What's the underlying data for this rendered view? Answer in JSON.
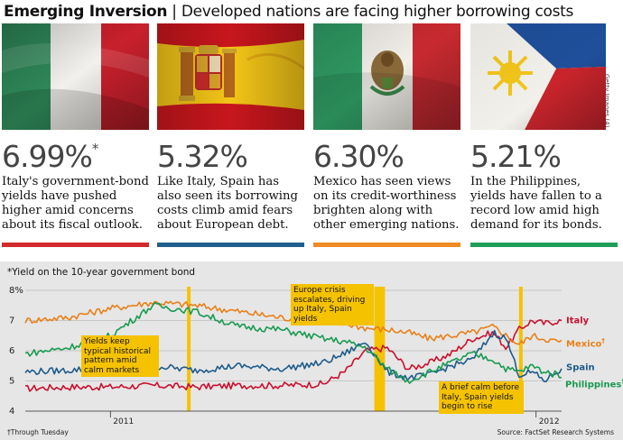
{
  "header": {
    "title_bold": "Emerging Inversion",
    "separator": "|",
    "subtitle": "Developed nations are facing higher borrowing costs"
  },
  "photo_credit": "Getty Images (4)",
  "columns": [
    {
      "country": "Italy",
      "value": "6.99%",
      "marker": "*",
      "description": "Italy's government-bond yields have pushed higher amid concerns about its fiscal outlook.",
      "bar_color": "#d12b2b"
    },
    {
      "country": "Spain",
      "value": "5.32%",
      "marker": "",
      "description": "Like Italy, Spain has also seen its borrowing costs climb amid fears about European debt.",
      "bar_color": "#1f5e8c"
    },
    {
      "country": "Mexico",
      "value": "6.30%",
      "marker": "",
      "description": "Mexico has seen views on its credit-worthiness brighten along with other emerging nations.",
      "bar_color": "#f08a24"
    },
    {
      "country": "Philippines",
      "value": "5.21%",
      "marker": "",
      "description": "In the Philippines, yields have fallen to a record low amid high demand for its bonds.",
      "bar_color": "#1f9e5a"
    }
  ],
  "chart_data": {
    "type": "line",
    "title": "*Yield on the 10-year government bond",
    "x_range": [
      2010.8,
      2012.06
    ],
    "x_ticks": [
      {
        "x": 2011,
        "label": "2011"
      },
      {
        "x": 2012,
        "label": "2012"
      }
    ],
    "ylim": [
      4,
      8
    ],
    "y_ticks": [
      {
        "v": 4,
        "label": "4"
      },
      {
        "v": 5,
        "label": "5"
      },
      {
        "v": 6,
        "label": "6"
      },
      {
        "v": 7,
        "label": "7"
      },
      {
        "v": 8,
        "label": "8%"
      }
    ],
    "highlight_bands": [
      {
        "x": 2011.18,
        "width": 0.006
      },
      {
        "x": 2011.62,
        "width": 0.025
      },
      {
        "x": 2011.96,
        "width": 0.008
      }
    ],
    "annotations": [
      {
        "name": "annotation-calm-markets",
        "text": "Yields keep typical historical pattern amid calm markets"
      },
      {
        "name": "annotation-europe-crisis",
        "text": "Europe crisis escalates, driving up Italy, Spain yields"
      },
      {
        "name": "annotation-brief-calm",
        "text": "A brief calm before Italy, Spain yields begin to rise"
      }
    ],
    "series": [
      {
        "name": "Italy",
        "label": "Italy",
        "marker": "",
        "color": "#c8102e",
        "x": [
          2010.8,
          2010.9,
          2011.0,
          2011.1,
          2011.2,
          2011.3,
          2011.4,
          2011.5,
          2011.55,
          2011.6,
          2011.65,
          2011.7,
          2011.75,
          2011.8,
          2011.85,
          2011.9,
          2011.93,
          2011.96,
          2011.99,
          2012.02,
          2012.05
        ],
        "values": [
          4.75,
          4.8,
          4.8,
          4.85,
          4.8,
          4.85,
          4.85,
          4.9,
          5.3,
          6.0,
          6.1,
          5.4,
          5.6,
          5.9,
          6.4,
          6.6,
          6.1,
          6.7,
          7.0,
          6.9,
          6.99
        ]
      },
      {
        "name": "Mexico",
        "label": "Mexico",
        "marker": "†",
        "color": "#e8801a",
        "x": [
          2010.8,
          2010.9,
          2011.0,
          2011.1,
          2011.2,
          2011.3,
          2011.4,
          2011.5,
          2011.55,
          2011.6,
          2011.65,
          2011.7,
          2011.75,
          2011.8,
          2011.85,
          2011.9,
          2011.93,
          2011.96,
          2011.99,
          2012.02,
          2012.05
        ],
        "values": [
          7.0,
          7.1,
          7.4,
          7.6,
          7.5,
          7.3,
          7.1,
          6.95,
          6.9,
          6.75,
          6.7,
          6.6,
          6.4,
          6.5,
          6.6,
          6.8,
          6.5,
          6.2,
          6.5,
          6.4,
          6.3
        ]
      },
      {
        "name": "Spain",
        "label": "Spain",
        "marker": "",
        "color": "#1e5b8c",
        "x": [
          2010.8,
          2010.9,
          2011.0,
          2011.1,
          2011.2,
          2011.3,
          2011.4,
          2011.5,
          2011.55,
          2011.6,
          2011.65,
          2011.7,
          2011.75,
          2011.8,
          2011.85,
          2011.9,
          2011.93,
          2011.96,
          2011.99,
          2012.02,
          2012.05
        ],
        "values": [
          5.3,
          5.35,
          5.45,
          5.5,
          5.35,
          5.5,
          5.4,
          5.6,
          5.9,
          6.3,
          5.3,
          5.1,
          5.2,
          5.5,
          5.7,
          6.6,
          6.4,
          5.2,
          5.3,
          5.0,
          5.32
        ]
      },
      {
        "name": "Philippines",
        "label": "Philippines",
        "marker": "†",
        "color": "#1a9a52",
        "x": [
          2010.8,
          2010.9,
          2011.0,
          2011.1,
          2011.2,
          2011.3,
          2011.4,
          2011.5,
          2011.55,
          2011.6,
          2011.65,
          2011.7,
          2011.75,
          2011.8,
          2011.85,
          2011.9,
          2011.93,
          2011.96,
          2011.99,
          2012.02,
          2012.05
        ],
        "values": [
          5.9,
          6.1,
          6.5,
          7.5,
          7.3,
          6.8,
          6.7,
          6.4,
          6.3,
          6.1,
          5.4,
          5.0,
          5.3,
          5.6,
          5.9,
          5.7,
          5.4,
          5.3,
          5.5,
          5.3,
          5.21
        ]
      }
    ],
    "footnote": "†Through Tuesday",
    "source": "Source: FactSet Research Systems"
  }
}
